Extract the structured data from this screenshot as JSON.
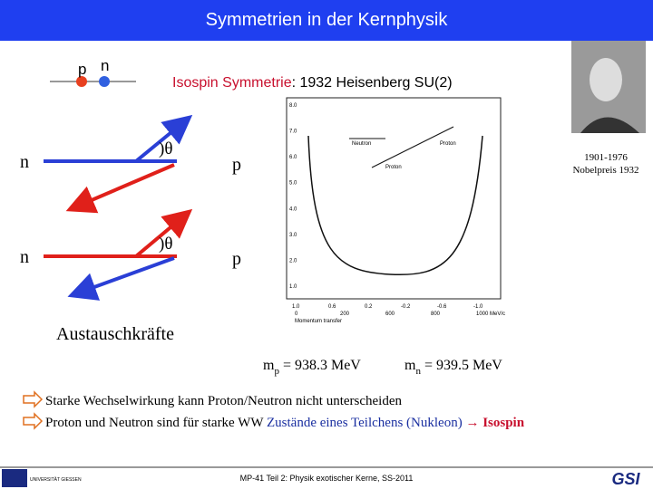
{
  "header": {
    "title": "Symmetrien in der Kernphysik"
  },
  "diagram": {
    "p_label": "p",
    "n_label": "n",
    "subtitle_red": "Isospin Symmetrie",
    "subtitle_black": ": 1932 Heisenberg SU(2)",
    "top": {
      "left": "n",
      "right": "p",
      "angle": ")θ"
    },
    "bottom": {
      "left": "n",
      "right": "p",
      "angle": ")θ"
    },
    "caption": "Austauschkräfte"
  },
  "plot": {
    "yticks": [
      "8.0",
      "7.0",
      "6.0",
      "5.0",
      "4.0",
      "3.0",
      "2.0",
      "1.0"
    ],
    "xticks_top": [
      "1.0",
      "0.6",
      "0.2",
      "-0.2",
      "-0.6",
      "-1.0"
    ],
    "xticks_bottom": [
      "0",
      "200",
      "600",
      "800",
      "1000 MeV/c"
    ],
    "xlabel": "Momentum transfer",
    "legend_neutron": "Neutron",
    "legend_proton": "Proton",
    "curve_proton": "Proton"
  },
  "portrait": {
    "years": "1901-1976",
    "prize": "Nobelpreis 1932"
  },
  "masses": {
    "p": {
      "m": "m",
      "sub": "p",
      "rest": " = 938.3 MeV"
    },
    "n": {
      "m": "m",
      "sub": "n",
      "rest": " = 939.5 MeV"
    }
  },
  "bullets": [
    {
      "text": "Starke Wechselwirkung kann Proton/Neutron nicht unterscheiden"
    },
    {
      "text": "Proton und Neutron sind für starke WW ",
      "blue": "Zustände eines Teilchens (Nukleon) ",
      "red": "→ Isospin"
    }
  ],
  "footer": {
    "text": "MP-41 Teil 2: Physik exotischer Kerne, SS-2011",
    "logo_right": "GSI",
    "logo_left": "UNIVERSITÄT GIESSEN"
  }
}
